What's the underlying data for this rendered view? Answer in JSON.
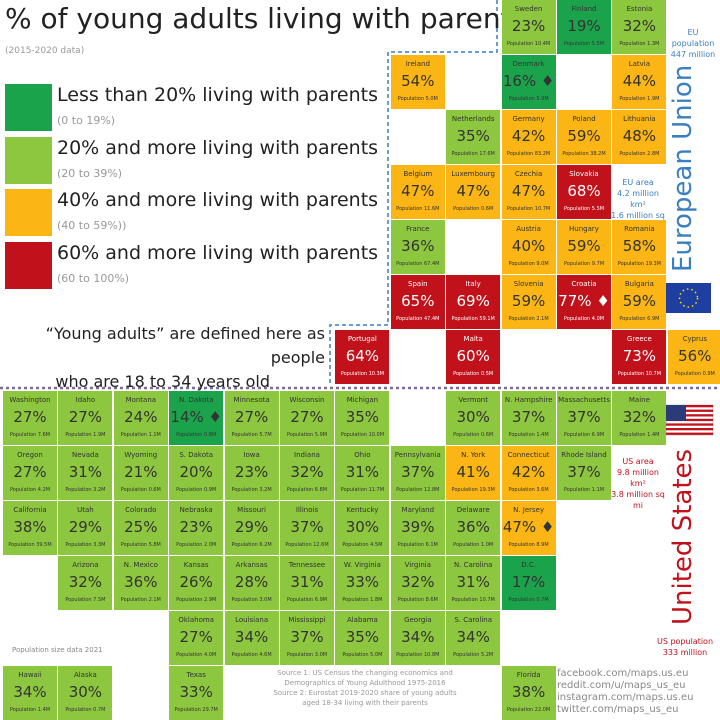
{
  "header": {
    "title": "% of young adults living with parents",
    "subtitle": "(2015-2020 data)"
  },
  "legend": [
    {
      "label": "Less than 20% living with parents",
      "range": "(0 to 19%)",
      "color": "#1ba34c"
    },
    {
      "label": "20% and more living with parents",
      "range": "(20 to 39%)",
      "color": "#8dc63f"
    },
    {
      "label": "40% and more living with parents",
      "range": "(40 to 59%))",
      "color": "#fbb514"
    },
    {
      "label": "60% and more living with parents",
      "range": "(60 to 100%)",
      "color": "#c1121c"
    }
  ],
  "note": {
    "line1": "“Young adults” are defined here as people",
    "line2": "who are 18 to 34 years old"
  },
  "eu": {
    "name": "European Union",
    "population": [
      "EU population",
      "447 million"
    ],
    "area": [
      "EU area",
      "4.2 million km²",
      "1.6 million sq mi"
    ],
    "tiles": [
      {
        "name": "Sweden",
        "value": "23%",
        "population": "Population 10.4M",
        "color": "#8dc63f"
      },
      {
        "name": "Finland",
        "value": "19%",
        "population": "Population 5.5M",
        "color": "#1ba34c"
      },
      {
        "name": "Estonia",
        "value": "32%",
        "population": "Population 1.3M",
        "color": "#8dc63f"
      },
      {
        "name": "Ireland",
        "value": "54%",
        "population": "Population 5.0M",
        "color": "#fbb514"
      },
      {
        "name": "Denmark",
        "value": "16% ♦",
        "population": "Population 5.9M",
        "color": "#1ba34c"
      },
      {
        "name": "Latvia",
        "value": "44%",
        "population": "Population 1.9M",
        "color": "#fbb514"
      },
      {
        "name": "Netherlands",
        "value": "35%",
        "population": "Population 17.6M",
        "color": "#8dc63f"
      },
      {
        "name": "Germany",
        "value": "42%",
        "population": "Population 83.2M",
        "color": "#fbb514"
      },
      {
        "name": "Poland",
        "value": "59%",
        "population": "Population 38.2M",
        "color": "#fbb514"
      },
      {
        "name": "Lithuania",
        "value": "48%",
        "population": "Population 2.8M",
        "color": "#fbb514"
      },
      {
        "name": "Belgium",
        "value": "47%",
        "population": "Population 11.6M",
        "color": "#fbb514"
      },
      {
        "name": "Luxembourg",
        "value": "47%",
        "population": "Population 0.6M",
        "color": "#fbb514"
      },
      {
        "name": "Czechia",
        "value": "47%",
        "population": "Population 10.7M",
        "color": "#fbb514"
      },
      {
        "name": "Slovakia",
        "value": "68%",
        "population": "Population 5.5M",
        "color": "#c1121c"
      },
      {
        "name": "France",
        "value": "36%",
        "population": "Population 67.4M",
        "color": "#8dc63f"
      },
      {
        "name": "Austria",
        "value": "40%",
        "population": "Population 9.0M",
        "color": "#fbb514"
      },
      {
        "name": "Hungary",
        "value": "59%",
        "population": "Population 9.7M",
        "color": "#fbb514"
      },
      {
        "name": "Romania",
        "value": "58%",
        "population": "Population 19.3M",
        "color": "#fbb514"
      },
      {
        "name": "Spain",
        "value": "65%",
        "population": "Population 47.4M",
        "color": "#c1121c"
      },
      {
        "name": "Italy",
        "value": "69%",
        "population": "Population 59.1M",
        "color": "#c1121c"
      },
      {
        "name": "Slovenia",
        "value": "59%",
        "population": "Population 2.1M",
        "color": "#fbb514"
      },
      {
        "name": "Croatia",
        "value": "77% ♦",
        "population": "Population 4.0M",
        "color": "#c1121c"
      },
      {
        "name": "Bulgaria",
        "value": "59%",
        "population": "Population 6.9M",
        "color": "#fbb514"
      },
      {
        "name": "Portugal",
        "value": "64%",
        "population": "Population 10.3M",
        "color": "#c1121c"
      },
      {
        "name": "Malta",
        "value": "60%",
        "population": "Population 0.5M",
        "color": "#c1121c"
      },
      {
        "name": "Greece",
        "value": "73%",
        "population": "Population 10.7M",
        "color": "#c1121c"
      },
      {
        "name": "Cyprus",
        "value": "56%",
        "population": "Population 0.9M",
        "color": "#fbb514"
      }
    ]
  },
  "us": {
    "name": "United States",
    "population": [
      "US population",
      "333 million"
    ],
    "area": [
      "US area",
      "9.8 million km²",
      "3.8 million sq mi"
    ],
    "tiles": [
      {
        "name": "Washington",
        "value": "27%",
        "population": "Population 7.6M",
        "color": "#8dc63f"
      },
      {
        "name": "Idaho",
        "value": "27%",
        "population": "Population 1.9M",
        "color": "#8dc63f"
      },
      {
        "name": "Montana",
        "value": "24%",
        "population": "Population 1.1M",
        "color": "#8dc63f"
      },
      {
        "name": "N. Dakota",
        "value": "14% ♦",
        "population": "Population 0.8M",
        "color": "#1ba34c"
      },
      {
        "name": "Minnesota",
        "value": "27%",
        "population": "Population 5.7M",
        "color": "#8dc63f"
      },
      {
        "name": "Wisconsin",
        "value": "27%",
        "population": "Population 5.9M",
        "color": "#8dc63f"
      },
      {
        "name": "Michigan",
        "value": "35%",
        "population": "Population 10.0M",
        "color": "#8dc63f"
      },
      {
        "name": "Vermont",
        "value": "30%",
        "population": "Population 0.6M",
        "color": "#8dc63f"
      },
      {
        "name": "N. Hampshire",
        "value": "37%",
        "population": "Population 1.4M",
        "color": "#8dc63f"
      },
      {
        "name": "Massachusetts",
        "value": "37%",
        "population": "Population 6.9M",
        "color": "#8dc63f"
      },
      {
        "name": "Maine",
        "value": "32%",
        "population": "Population 1.4M",
        "color": "#8dc63f"
      },
      {
        "name": "Oregon",
        "value": "27%",
        "population": "Population 4.2M",
        "color": "#8dc63f"
      },
      {
        "name": "Nevada",
        "value": "31%",
        "population": "Population 3.2M",
        "color": "#8dc63f"
      },
      {
        "name": "Wyoming",
        "value": "21%",
        "population": "Population 0.6M",
        "color": "#8dc63f"
      },
      {
        "name": "S. Dakota",
        "value": "20%",
        "population": "Population 0.9M",
        "color": "#8dc63f"
      },
      {
        "name": "Iowa",
        "value": "23%",
        "population": "Population 3.2M",
        "color": "#8dc63f"
      },
      {
        "name": "Indiana",
        "value": "32%",
        "population": "Population 6.8M",
        "color": "#8dc63f"
      },
      {
        "name": "Ohio",
        "value": "31%",
        "population": "Population 11.7M",
        "color": "#8dc63f"
      },
      {
        "name": "Pennsylvania",
        "value": "37%",
        "population": "Population 12.8M",
        "color": "#8dc63f"
      },
      {
        "name": "N. York",
        "value": "41%",
        "population": "Population 19.3M",
        "color": "#fbb514"
      },
      {
        "name": "Connecticut",
        "value": "42%",
        "population": "Population 3.6M",
        "color": "#fbb514"
      },
      {
        "name": "Rhode Island",
        "value": "37%",
        "population": "Population 1.1M",
        "color": "#8dc63f"
      },
      {
        "name": "California",
        "value": "38%",
        "population": "Population 39.5M",
        "color": "#8dc63f"
      },
      {
        "name": "Utah",
        "value": "29%",
        "population": "Population 3.3M",
        "color": "#8dc63f"
      },
      {
        "name": "Colorado",
        "value": "25%",
        "population": "Population 5.8M",
        "color": "#8dc63f"
      },
      {
        "name": "Nebraska",
        "value": "23%",
        "population": "Population 2.0M",
        "color": "#8dc63f"
      },
      {
        "name": "Missouri",
        "value": "29%",
        "population": "Population 6.2M",
        "color": "#8dc63f"
      },
      {
        "name": "Illinois",
        "value": "37%",
        "population": "Population 12.6M",
        "color": "#8dc63f"
      },
      {
        "name": "Kentucky",
        "value": "30%",
        "population": "Population 4.5M",
        "color": "#8dc63f"
      },
      {
        "name": "Maryland",
        "value": "39%",
        "population": "Population 6.1M",
        "color": "#8dc63f"
      },
      {
        "name": "Delaware",
        "value": "36%",
        "population": "Population 1.0M",
        "color": "#8dc63f"
      },
      {
        "name": "N. Jersey",
        "value": "47% ♦",
        "population": "Population 8.9M",
        "color": "#fbb514"
      },
      {
        "name": "Arizona",
        "value": "32%",
        "population": "Population 7.5M",
        "color": "#8dc63f"
      },
      {
        "name": "N. Mexico",
        "value": "36%",
        "population": "Population 2.1M",
        "color": "#8dc63f"
      },
      {
        "name": "Kansas",
        "value": "26%",
        "population": "Population 2.9M",
        "color": "#8dc63f"
      },
      {
        "name": "Arkansas",
        "value": "28%",
        "population": "Population 3.0M",
        "color": "#8dc63f"
      },
      {
        "name": "Tennessee",
        "value": "31%",
        "population": "Population 6.9M",
        "color": "#8dc63f"
      },
      {
        "name": "W. Virginia",
        "value": "33%",
        "population": "Population 1.8M",
        "color": "#8dc63f"
      },
      {
        "name": "Virginia",
        "value": "32%",
        "population": "Population 8.6M",
        "color": "#8dc63f"
      },
      {
        "name": "N. Carolina",
        "value": "31%",
        "population": "Population 10.7M",
        "color": "#8dc63f"
      },
      {
        "name": "D.C.",
        "value": "17%",
        "population": "Population 0.7M",
        "color": "#1ba34c"
      },
      {
        "name": "Oklahoma",
        "value": "27%",
        "population": "Population 4.0M",
        "color": "#8dc63f"
      },
      {
        "name": "Louisiana",
        "value": "34%",
        "population": "Population 4.6M",
        "color": "#8dc63f"
      },
      {
        "name": "Mississippi",
        "value": "37%",
        "population": "Population 3.0M",
        "color": "#8dc63f"
      },
      {
        "name": "Alabama",
        "value": "35%",
        "population": "Population 5.0M",
        "color": "#8dc63f"
      },
      {
        "name": "Georgia",
        "value": "34%",
        "population": "Population 10.8M",
        "color": "#8dc63f"
      },
      {
        "name": "S. Carolina",
        "value": "34%",
        "population": "Population 5.2M",
        "color": "#8dc63f"
      },
      {
        "name": "Hawaii",
        "value": "34%",
        "population": "Population 1.4M",
        "color": "#8dc63f"
      },
      {
        "name": "Alaska",
        "value": "30%",
        "population": "Population 0.7M",
        "color": "#8dc63f"
      },
      {
        "name": "Texas",
        "value": "33%",
        "population": "Population 29.7M",
        "color": "#8dc63f"
      },
      {
        "name": "Florida",
        "value": "38%",
        "population": "Population 22.0M",
        "color": "#8dc63f"
      }
    ]
  },
  "footer": {
    "population_note": "Population size data 2021",
    "sources": [
      "Source 1: US Census the changing economics and",
      "Demographics of Young Adulthood 1975-2016",
      "Source 2: Eurostat 2019-2020 share of young adults",
      "aged 18-34 living with their parents"
    ],
    "links": [
      "facebook.com/maps.us.eu",
      "reddit.com/u/maps_us_eu",
      "instagram.com/maps.us.eu",
      "twitter.com/maps_us_eu"
    ]
  }
}
